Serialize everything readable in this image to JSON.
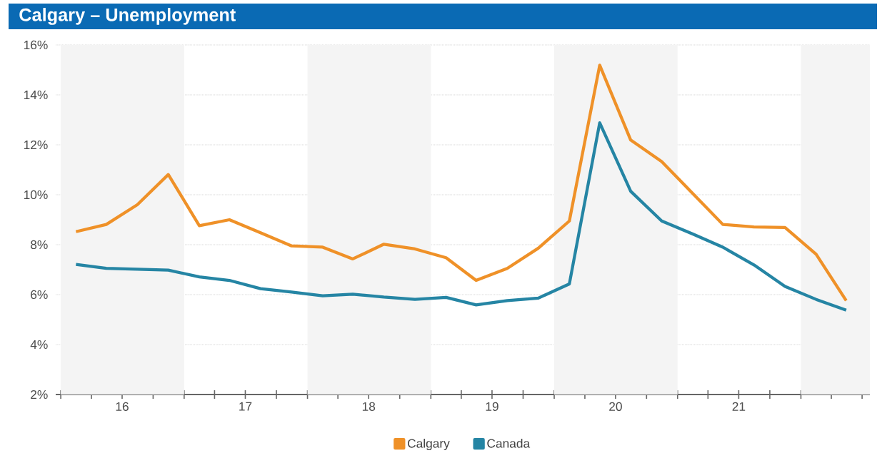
{
  "chart_data": {
    "type": "line",
    "title": "Calgary – Unemployment",
    "x": [
      "2016-02-15",
      "2016-05-15",
      "2016-08-15",
      "2016-11-15",
      "2017-02-15",
      "2017-05-15",
      "2017-08-15",
      "2017-11-15",
      "2018-02-15",
      "2018-05-15",
      "2018-08-15",
      "2018-11-15",
      "2019-02-15",
      "2019-05-15",
      "2019-08-15",
      "2019-11-15",
      "2020-02-15",
      "2020-05-15",
      "2020-08-15",
      "2020-11-15",
      "2021-02-15",
      "2021-05-15",
      "2021-08-15",
      "2021-11-15",
      "2022-02-15",
      "2022-05-15"
    ],
    "series": [
      {
        "name": "Calgary",
        "color": "#ef9128",
        "values": [
          8.52,
          8.81,
          9.6,
          10.81,
          8.76,
          9.0,
          8.48,
          7.95,
          7.9,
          7.43,
          8.02,
          7.83,
          7.48,
          6.57,
          7.05,
          7.86,
          8.95,
          15.19,
          12.19,
          11.33,
          10.05,
          8.81,
          8.71,
          8.69,
          7.62,
          5.76
        ]
      },
      {
        "name": "Canada",
        "color": "#2585a4",
        "values": [
          7.21,
          7.05,
          7.02,
          6.98,
          6.71,
          6.57,
          6.24,
          6.1,
          5.95,
          6.02,
          5.9,
          5.81,
          5.89,
          5.59,
          5.76,
          5.86,
          6.43,
          12.88,
          10.14,
          8.95,
          8.43,
          7.9,
          7.19,
          6.33,
          5.81,
          5.38
        ]
      }
    ],
    "xlim": [
      "2015-12-17",
      "2022-07-24"
    ],
    "xticks": [
      {
        "value": "2016-01-01",
        "label": null
      },
      {
        "value": "2016-04-01",
        "label": null
      },
      {
        "value": "2016-07-01",
        "label": "16"
      },
      {
        "value": "2016-10-01",
        "label": null
      },
      {
        "value": "2017-01-01",
        "label": null
      },
      {
        "value": "2017-04-01",
        "label": null
      },
      {
        "value": "2017-07-01",
        "label": "17"
      },
      {
        "value": "2017-10-01",
        "label": null
      },
      {
        "value": "2018-01-01",
        "label": null
      },
      {
        "value": "2018-04-01",
        "label": null
      },
      {
        "value": "2018-07-01",
        "label": "18"
      },
      {
        "value": "2018-10-01",
        "label": null
      },
      {
        "value": "2019-01-01",
        "label": null
      },
      {
        "value": "2019-04-01",
        "label": null
      },
      {
        "value": "2019-07-01",
        "label": "19"
      },
      {
        "value": "2019-10-01",
        "label": null
      },
      {
        "value": "2020-01-01",
        "label": null
      },
      {
        "value": "2020-04-01",
        "label": null
      },
      {
        "value": "2020-07-01",
        "label": "20"
      },
      {
        "value": "2020-10-01",
        "label": null
      },
      {
        "value": "2021-01-01",
        "label": null
      },
      {
        "value": "2021-04-01",
        "label": null
      },
      {
        "value": "2021-07-01",
        "label": "21"
      },
      {
        "value": "2021-10-01",
        "label": null
      },
      {
        "value": "2022-01-01",
        "label": null
      },
      {
        "value": "2022-04-01",
        "label": null
      },
      {
        "value": "2022-07-01",
        "label": null
      }
    ],
    "ylim": [
      2,
      16
    ],
    "yticks": [
      {
        "value": 2,
        "label": "2%"
      },
      {
        "value": 4,
        "label": "4%"
      },
      {
        "value": 6,
        "label": "6%"
      },
      {
        "value": 8,
        "label": "8%"
      },
      {
        "value": 10,
        "label": "10%"
      },
      {
        "value": 12,
        "label": "12%"
      },
      {
        "value": 14,
        "label": "14%"
      },
      {
        "value": 16,
        "label": "16%"
      }
    ],
    "bands": [
      {
        "axis": "x",
        "from": "2016-01-01",
        "to": "2017-01-01",
        "color": "#f4f4f4"
      },
      {
        "axis": "x",
        "from": "2018-01-01",
        "to": "2019-01-01",
        "color": "#f4f4f4"
      },
      {
        "axis": "x",
        "from": "2020-01-01",
        "to": "2021-01-01",
        "color": "#f4f4f4"
      },
      {
        "axis": "x",
        "from": "2022-01-01",
        "to": "2022-07-24",
        "color": "#f4f4f4"
      }
    ],
    "grid": "y",
    "legend": "bottom",
    "marker": "none",
    "line_style": "solid"
  }
}
